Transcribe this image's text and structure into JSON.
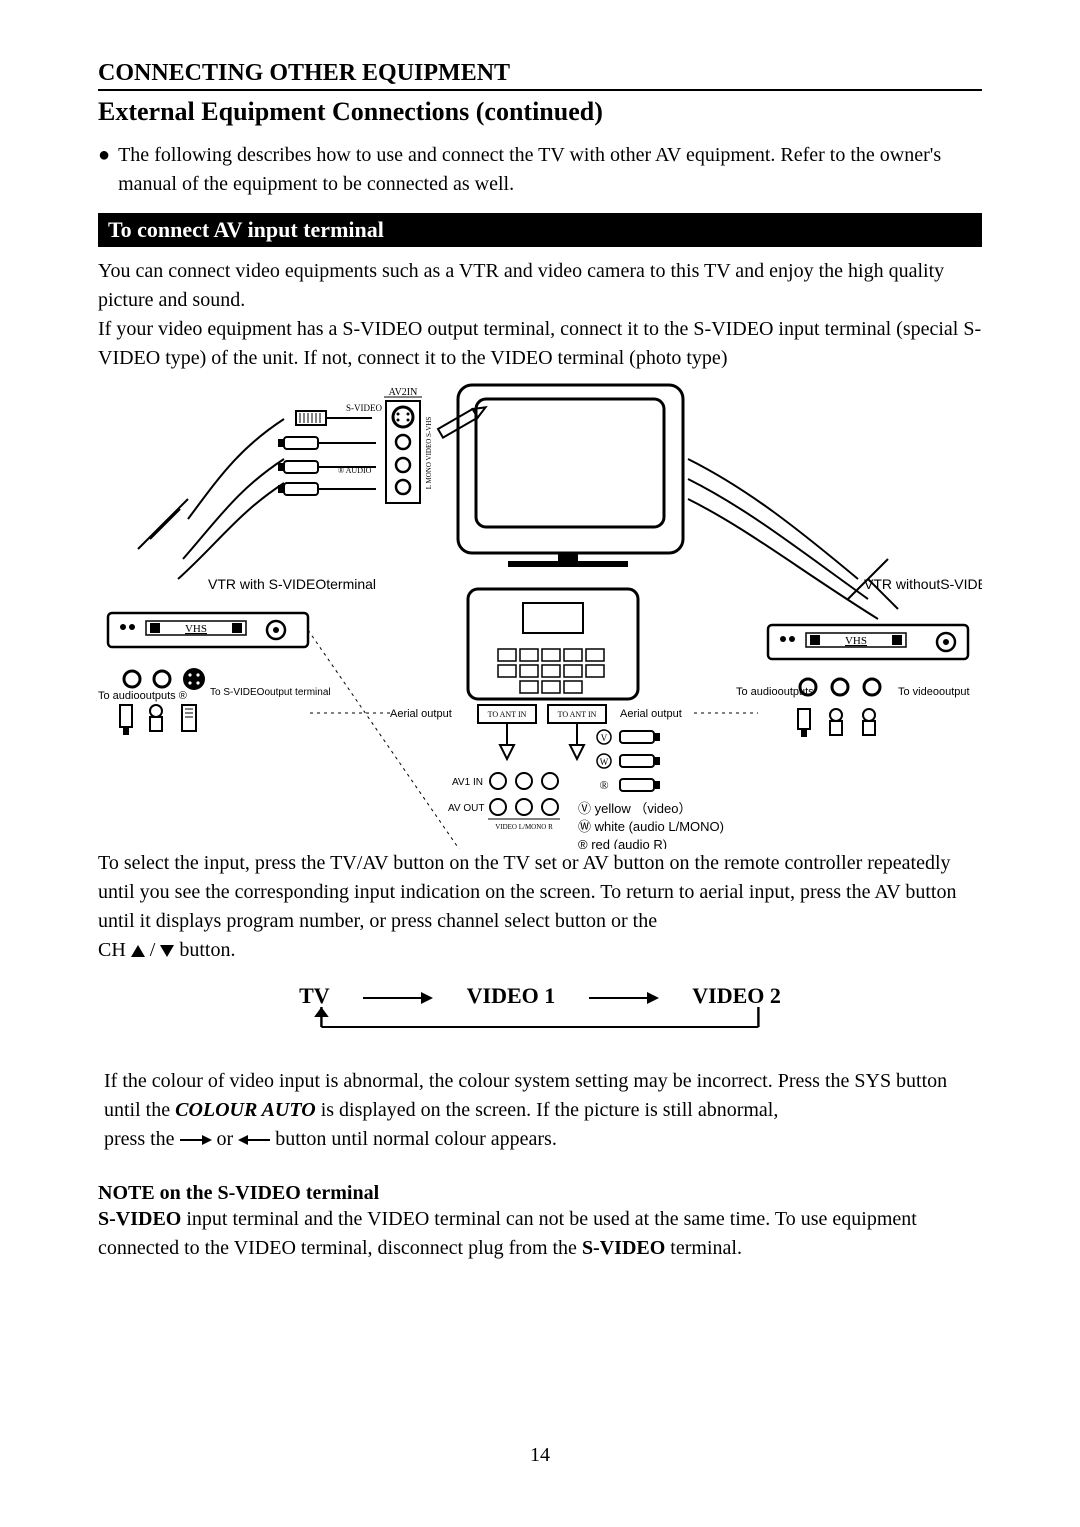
{
  "header": {
    "section_title": "CONNECTING OTHER EQUIPMENT",
    "sub_title": "External Equipment Connections (continued)"
  },
  "intro": {
    "bullet_text": "The following describes how to use and connect the TV with other AV equipment. Refer to the owner's manual of the equipment to be connected as well."
  },
  "black_bar": {
    "label": "To connect AV input terminal"
  },
  "para1": {
    "line1": "You can connect video equipments such as a VTR and video camera to this TV and enjoy the high quality picture and sound.",
    "line2": "If your video equipment has a S-VIDEO output terminal, connect it to the S-VIDEO input terminal (special S-VIDEO type) of the unit. If not, connect it to the VIDEO terminal (photo type)"
  },
  "diagram": {
    "labels": {
      "av2_in": "AV2\nIN",
      "svideo": "S-VIDEO",
      "audio_r": "® AUDIO",
      "vtr_with": "VTR with S-VIDEO\nterminal",
      "vtr_without": "VTR without\nS-VIDEO terminal",
      "vhs_left": "VHS",
      "vhs_right": "VHS",
      "to_svideo": "To S-VIDEO\noutput terminal",
      "to_audio_l": "To audio\noutputs ®",
      "to_audio_r": "To audio\noutputs",
      "to_video_r": "To video\noutput",
      "aerial_out_l": "Aerial output",
      "aerial_out_r": "Aerial output",
      "to_ant_in_l": "TO ANT IN",
      "to_ant_in_r": "TO ANT IN",
      "av1_in": "AV1 IN",
      "av_out": "AV OUT",
      "video_lmono_r": "VIDEO L/MONO  R",
      "yellow": "yellow （video）",
      "white": "white (audio L/MONO)",
      "red": "red (audio R)",
      "mono_video_s_vhs": "L MONO VIDEO S-VHS",
      "circ_v": "Ⓥ",
      "circ_w": "Ⓦ",
      "circ_r": "®"
    }
  },
  "para2": {
    "text_a": "To select the input, press the TV/AV button on the TV set or AV button on the remote controller repeatedly until you see the corresponding input indication on the screen. To return to aerial input, press the AV button until it displays program number, or press channel select button or the",
    "text_b_prefix": "CH ",
    "text_b_slash": "/",
    "text_b_suffix": " button."
  },
  "flow": {
    "n1": "TV",
    "n2": "VIDEO 1",
    "n3": "VIDEO 2"
  },
  "para3": {
    "line1_a": "If the colour of video input is abnormal, the colour system setting may be incorrect. Press the SYS button until the ",
    "line1_em": "COLOUR AUTO",
    "line1_b": " is displayed on the screen. If the picture is still abnormal,",
    "line2_a": "press the ",
    "line2_mid": " or ",
    "line2_b": " button until normal colour appears."
  },
  "note": {
    "title": "NOTE on the S-VIDEO terminal",
    "body_a": "S-VIDEO",
    "body_b": " input terminal and the VIDEO terminal can not be used at the same time. To use equipment connected to the VIDEO terminal, disconnect plug from the ",
    "body_c": "S-VIDEO",
    "body_d": " terminal."
  },
  "page_number": "14",
  "colors": {
    "text": "#000000",
    "bg": "#ffffff",
    "bar_bg": "#000000",
    "bar_fg": "#ffffff"
  },
  "fontsizes": {
    "section_title": 24,
    "sub_title": 26,
    "body": 20,
    "bar": 22,
    "flow": 22,
    "diagram_small": 10,
    "diagram_med": 14
  }
}
